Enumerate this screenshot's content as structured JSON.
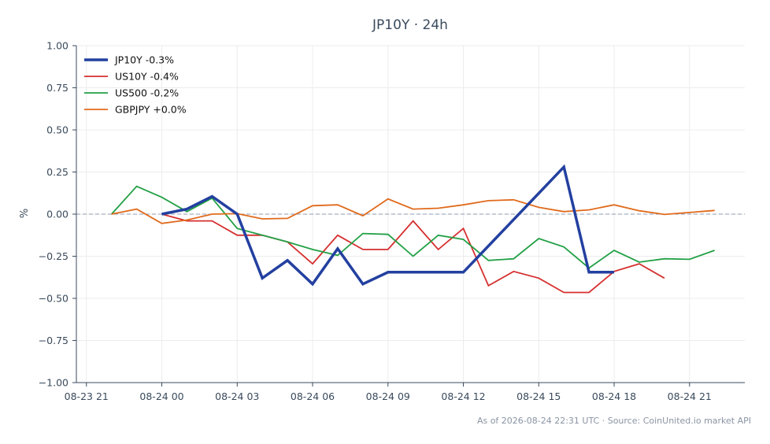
{
  "chart_data": {
    "type": "line",
    "title": "JP10Y · 24h",
    "ylabel": "%",
    "xlabel": "",
    "ylim": [
      -1.0,
      1.0
    ],
    "xlim": [
      "2026-08-23T20:36",
      "2026-08-24T23:12"
    ],
    "yticks": [
      1.0,
      0.75,
      0.5,
      0.25,
      0.0,
      -0.25,
      -0.5,
      -0.75,
      -1.0
    ],
    "ytick_labels": [
      "1.00",
      "0.75",
      "0.50",
      "0.25",
      "0.00",
      "−0.25",
      "−0.50",
      "−0.75",
      "−1.00"
    ],
    "xticks": [
      "2026-08-23T21:00",
      "2026-08-24T00:00",
      "2026-08-24T03:00",
      "2026-08-24T06:00",
      "2026-08-24T09:00",
      "2026-08-24T12:00",
      "2026-08-24T15:00",
      "2026-08-24T18:00",
      "2026-08-24T21:00"
    ],
    "xtick_labels": [
      "08-23 21",
      "08-24 00",
      "08-24 03",
      "08-24 06",
      "08-24 09",
      "08-24 12",
      "08-24 15",
      "08-24 18",
      "08-24 21"
    ],
    "grid": true,
    "zero_line": true,
    "legend_position": "top-left",
    "series": [
      {
        "name": "JP10Y -0.3%",
        "color": "#2340a0",
        "bold": true,
        "x": [
          "2026-08-24T00:00",
          "2026-08-24T01:00",
          "2026-08-24T02:00",
          "2026-08-24T03:00",
          "2026-08-24T04:00",
          "2026-08-24T05:00",
          "2026-08-24T06:00",
          "2026-08-24T07:00",
          "2026-08-24T08:00",
          "2026-08-24T09:00",
          "2026-08-24T10:00",
          "2026-08-24T11:00",
          "2026-08-24T12:00",
          "2026-08-24T16:00",
          "2026-08-24T17:00",
          "2026-08-24T18:00"
        ],
        "values": [
          0.0,
          0.03,
          0.105,
          0.0,
          -0.38,
          -0.275,
          -0.415,
          -0.205,
          -0.415,
          -0.345,
          -0.345,
          -0.345,
          -0.345,
          0.28,
          -0.345,
          -0.345
        ]
      },
      {
        "name": "US10Y -0.4%",
        "color": "#d62f2f",
        "bold": false,
        "x": [
          "2026-08-24T00:00",
          "2026-08-24T01:00",
          "2026-08-24T02:00",
          "2026-08-24T03:00",
          "2026-08-24T04:00",
          "2026-08-24T05:00",
          "2026-08-24T06:00",
          "2026-08-24T07:00",
          "2026-08-24T08:00",
          "2026-08-24T09:00",
          "2026-08-24T10:00",
          "2026-08-24T11:00",
          "2026-08-24T12:00",
          "2026-08-24T13:00",
          "2026-08-24T14:00",
          "2026-08-24T15:00",
          "2026-08-24T16:00",
          "2026-08-24T17:00",
          "2026-08-24T18:00",
          "2026-08-24T19:00",
          "2026-08-24T20:00"
        ],
        "values": [
          0.0,
          -0.04,
          -0.04,
          -0.125,
          -0.125,
          -0.165,
          -0.295,
          -0.125,
          -0.21,
          -0.21,
          -0.04,
          -0.21,
          -0.085,
          -0.425,
          -0.34,
          -0.38,
          -0.465,
          -0.465,
          -0.34,
          -0.295,
          -0.38
        ]
      },
      {
        "name": "US500 -0.2%",
        "color": "#22a045",
        "bold": false,
        "x": [
          "2026-08-23T22:00",
          "2026-08-23T23:00",
          "2026-08-24T00:00",
          "2026-08-24T01:00",
          "2026-08-24T02:00",
          "2026-08-24T03:00",
          "2026-08-24T04:00",
          "2026-08-24T05:00",
          "2026-08-24T06:00",
          "2026-08-24T07:00",
          "2026-08-24T08:00",
          "2026-08-24T09:00",
          "2026-08-24T10:00",
          "2026-08-24T11:00",
          "2026-08-24T12:00",
          "2026-08-24T13:00",
          "2026-08-24T14:00",
          "2026-08-24T15:00",
          "2026-08-24T16:00",
          "2026-08-24T17:00",
          "2026-08-24T18:00",
          "2026-08-24T19:00",
          "2026-08-24T20:00",
          "2026-08-24T21:00",
          "2026-08-24T22:00"
        ],
        "values": [
          0.0,
          0.165,
          0.1,
          0.015,
          0.095,
          -0.085,
          -0.125,
          -0.165,
          -0.21,
          -0.245,
          -0.115,
          -0.12,
          -0.25,
          -0.125,
          -0.15,
          -0.275,
          -0.265,
          -0.145,
          -0.195,
          -0.32,
          -0.215,
          -0.285,
          -0.265,
          -0.268,
          -0.215
        ]
      },
      {
        "name": "GBPJPY +0.0%",
        "color": "#e06a1c",
        "bold": false,
        "x": [
          "2026-08-23T22:00",
          "2026-08-23T23:00",
          "2026-08-24T00:00",
          "2026-08-24T01:00",
          "2026-08-24T02:00",
          "2026-08-24T03:00",
          "2026-08-24T04:00",
          "2026-08-24T05:00",
          "2026-08-24T06:00",
          "2026-08-24T07:00",
          "2026-08-24T08:00",
          "2026-08-24T09:00",
          "2026-08-24T10:00",
          "2026-08-24T11:00",
          "2026-08-24T12:00",
          "2026-08-24T13:00",
          "2026-08-24T14:00",
          "2026-08-24T15:00",
          "2026-08-24T16:00",
          "2026-08-24T17:00",
          "2026-08-24T18:00",
          "2026-08-24T19:00",
          "2026-08-24T20:00",
          "2026-08-24T21:00",
          "2026-08-24T22:00"
        ],
        "values": [
          0.0,
          0.03,
          -0.055,
          -0.035,
          0.0,
          0.003,
          -0.028,
          -0.025,
          0.05,
          0.055,
          -0.01,
          0.09,
          0.03,
          0.035,
          0.055,
          0.08,
          0.085,
          0.04,
          0.015,
          0.025,
          0.055,
          0.02,
          -0.002,
          0.01,
          0.022
        ]
      }
    ]
  },
  "footer": {
    "note": "As of 2026-08-24 22:31 UTC · Source: CoinUnited.io market API"
  }
}
